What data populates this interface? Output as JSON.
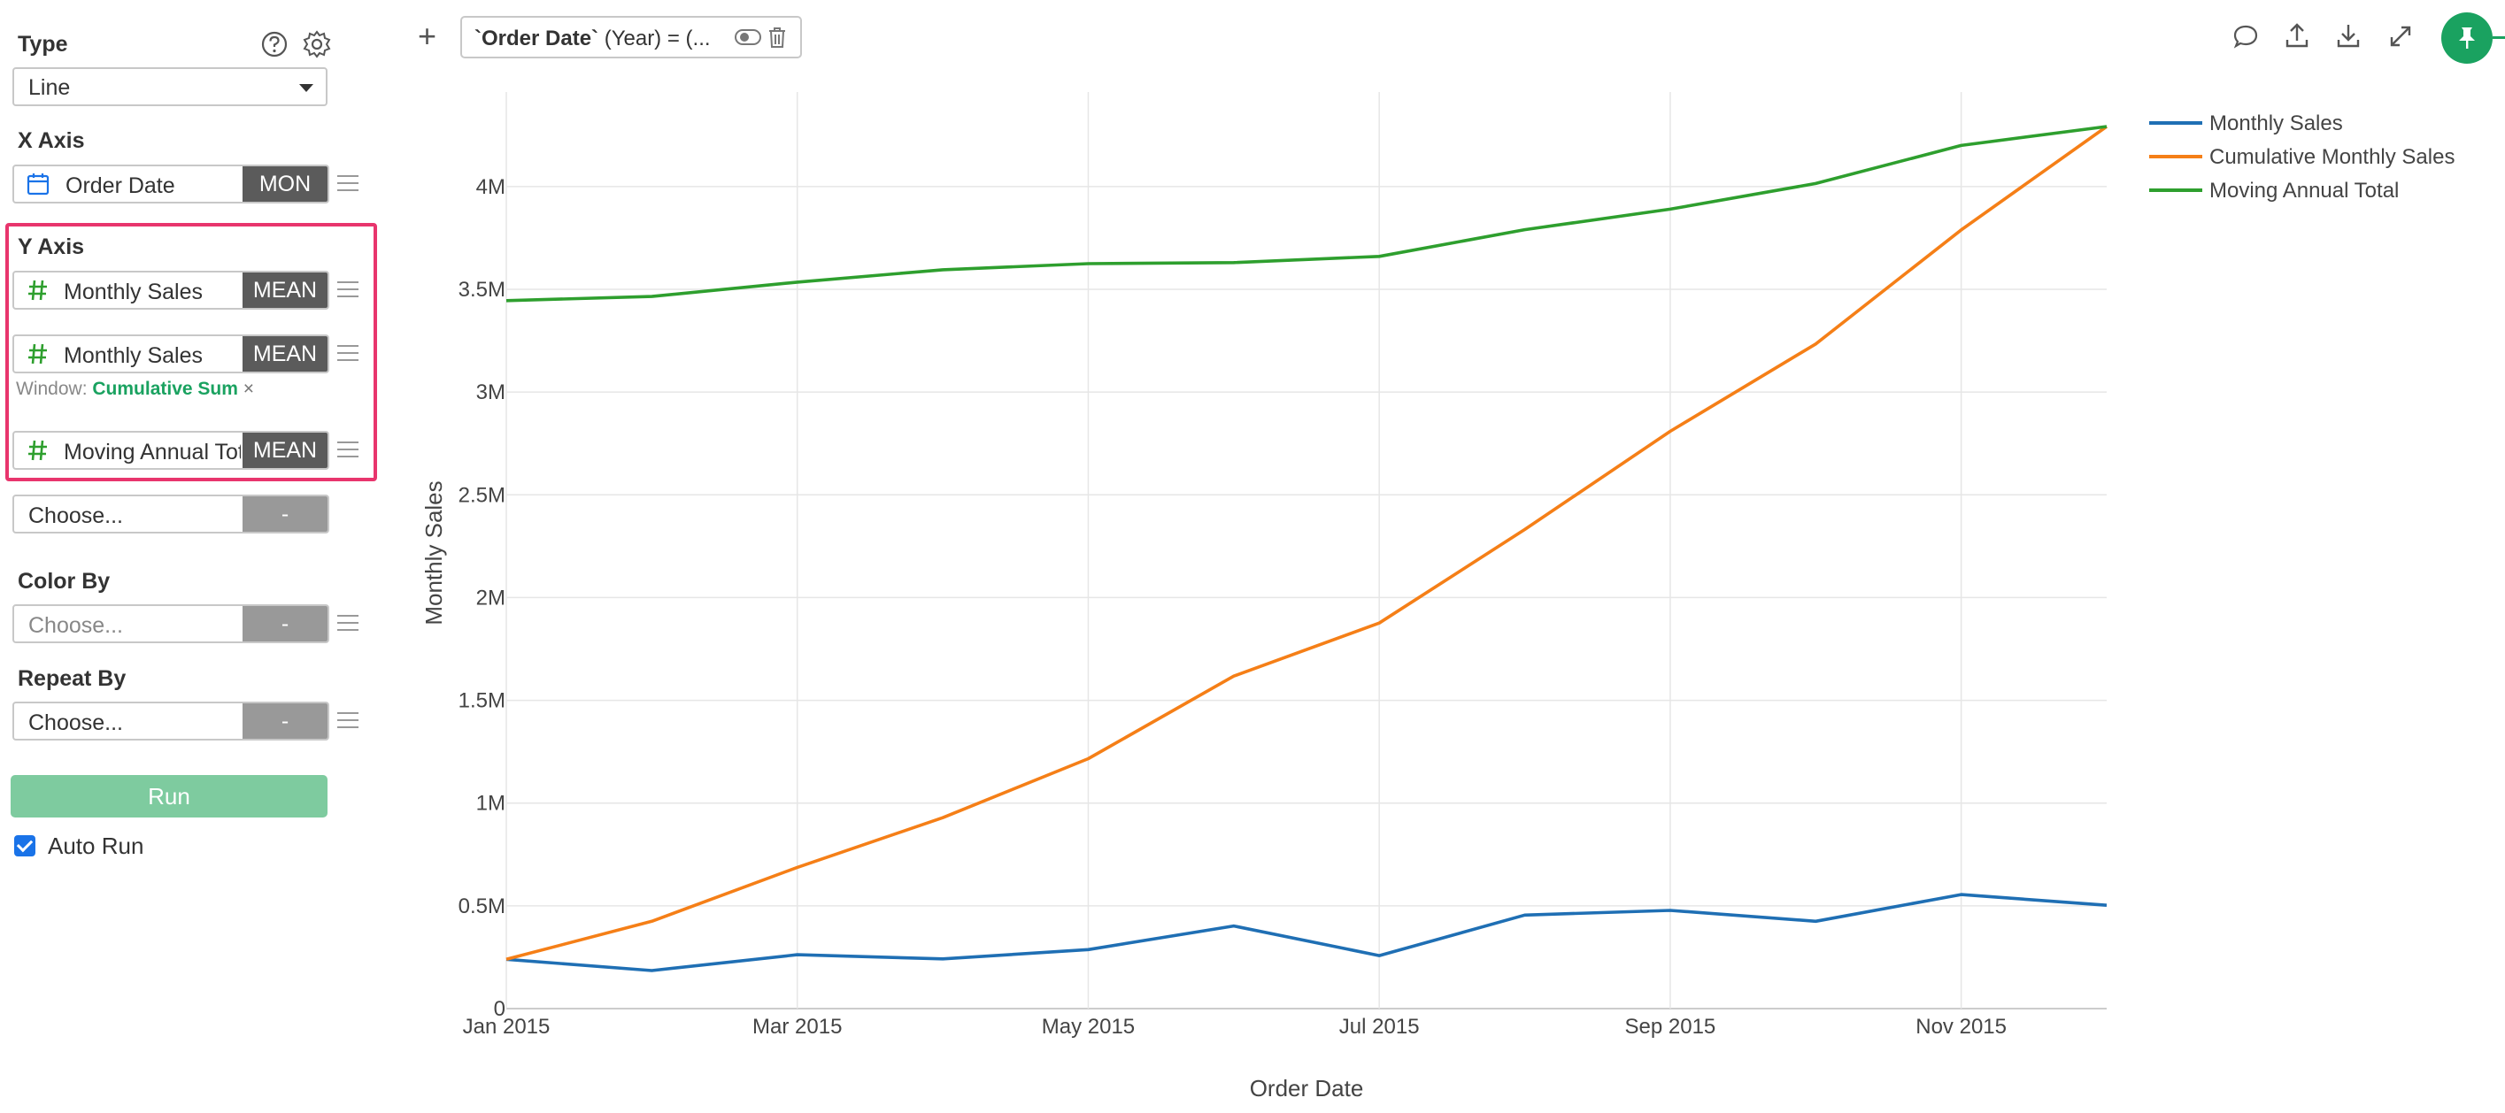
{
  "sidebar": {
    "type_label": "Type",
    "type_value": "Line",
    "x_axis_label": "X Axis",
    "x_field": {
      "name": "Order Date",
      "agg": "MON"
    },
    "y_axis_label": "Y Axis",
    "y_fields": [
      {
        "name": "Monthly Sales",
        "agg": "MEAN"
      },
      {
        "name": "Monthly Sales",
        "agg": "MEAN"
      },
      {
        "name": "Moving Annual Total",
        "agg": "MEAN"
      }
    ],
    "window_label": "Window:",
    "window_value": "Cumulative Sum",
    "window_remove": "×",
    "y_extra": {
      "name": "Choose...",
      "agg": "-"
    },
    "color_by_label": "Color By",
    "color_by": {
      "name": "Choose...",
      "agg": "-"
    },
    "repeat_by_label": "Repeat By",
    "repeat_by": {
      "name": "Choose...",
      "agg": "-"
    },
    "run_label": "Run",
    "auto_run_label": "Auto Run"
  },
  "toolbar": {
    "add_label": "+",
    "filter_field": "`Order Date`",
    "filter_rest": " (Year) = (..."
  },
  "colors": {
    "monthly": "#1f6fb4",
    "cumulative": "#f57f17",
    "mat": "#2e9f2e",
    "accent": "#1aa260",
    "highlight": "#e8356d"
  },
  "chart_data": {
    "type": "line",
    "xlabel": "Order Date",
    "ylabel": "Monthly Sales",
    "x": [
      "2015-01",
      "2015-02",
      "2015-03",
      "2015-04",
      "2015-05",
      "2015-06",
      "2015-07",
      "2015-08",
      "2015-09",
      "2015-10",
      "2015-11",
      "2015-12"
    ],
    "x_tick_labels": [
      "Jan 2015",
      "Mar 2015",
      "May 2015",
      "Jul 2015",
      "Sep 2015",
      "Nov 2015"
    ],
    "y_tick_labels": [
      "0",
      "0.5M",
      "1M",
      "1.5M",
      "2M",
      "2.5M",
      "3M",
      "3.5M",
      "4M"
    ],
    "ylim": [
      0,
      4460000
    ],
    "grid": true,
    "legend_position": "top-right",
    "series": [
      {
        "name": "Monthly Sales",
        "color": "#1f6fb4",
        "values": [
          240000,
          185000,
          262000,
          242000,
          287000,
          402000,
          258000,
          455000,
          478000,
          425000,
          555000,
          503000
        ]
      },
      {
        "name": "Cumulative Monthly Sales",
        "color": "#f57f17",
        "values": [
          240000,
          425000,
          687000,
          929000,
          1216000,
          1618000,
          1876000,
          2331000,
          2809000,
          3234000,
          3789000,
          4292000
        ]
      },
      {
        "name": "Moving Annual Total",
        "color": "#2e9f2e",
        "values": [
          3445000,
          3465000,
          3535000,
          3595000,
          3625000,
          3630000,
          3660000,
          3790000,
          3890000,
          4015000,
          4200000,
          4292000
        ]
      }
    ]
  }
}
